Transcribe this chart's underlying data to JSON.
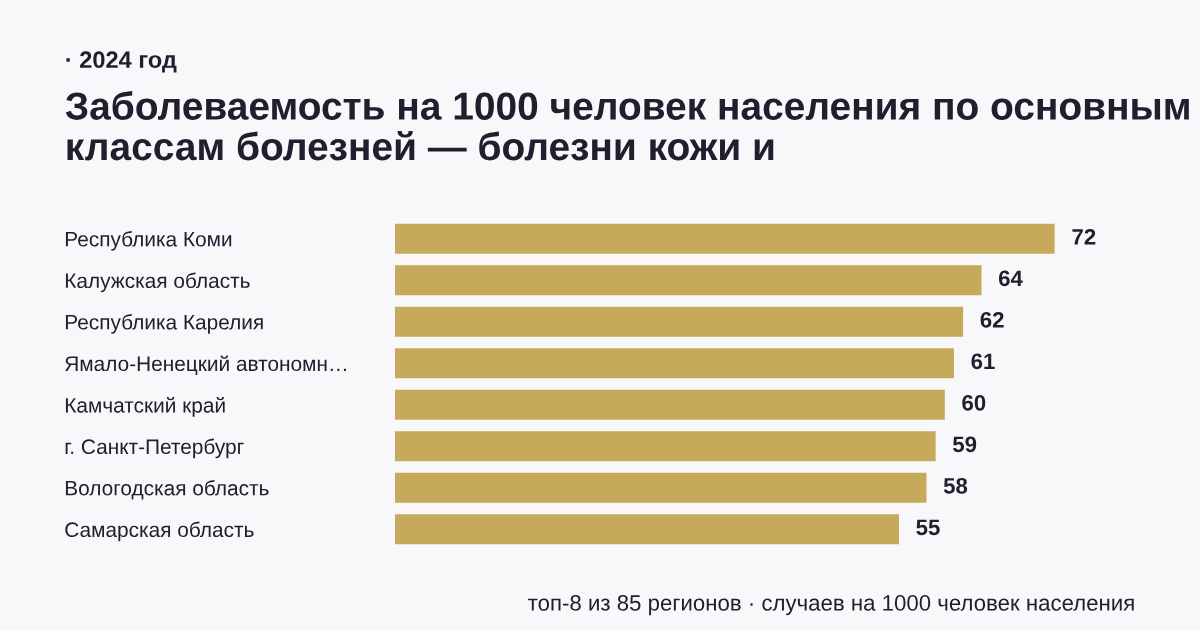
{
  "chart_data": {
    "type": "bar",
    "orientation": "horizontal",
    "subtitle": "· 2024 год",
    "title": "Заболеваемость на 1000 человек населения по основным классам болезней — болезни кожи и",
    "categories": [
      "Республика Коми",
      "Калужская область",
      "Республика Карелия",
      "Ямало-Ненецкий автономн…",
      "Камчатский край",
      "г. Санкт-Петербург",
      "Вологодская область",
      "Самарская область"
    ],
    "values": [
      72,
      64,
      62,
      61,
      60,
      59,
      58,
      55
    ],
    "color": "#c6a95a",
    "data_labels": true,
    "grid": false,
    "legend": false,
    "annotations": [
      "топ-8 из 85 регионов · случаев на 1000 человек населения"
    ]
  }
}
